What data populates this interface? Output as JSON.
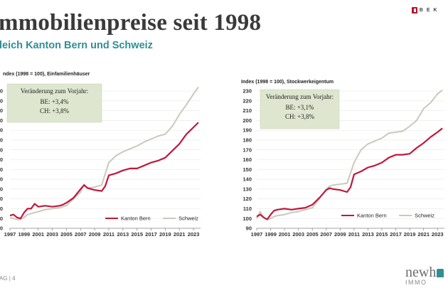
{
  "page": {
    "title": "mmobilienpreise seit 1998",
    "subtitle": "leich Kanton Bern und Schweiz",
    "logo_text": "B E K",
    "footer_left": "AG | 4",
    "brand_name": "newh",
    "brand_sub": "IMMO"
  },
  "colors": {
    "bern": "#c0183c",
    "schweiz": "#c9c9bd",
    "accent": "#2f8f92",
    "box_fill": "#dfe6cf"
  },
  "chart_data": [
    {
      "type": "line",
      "title": "ndex (1998 = 100), Einfamilienhäuser",
      "ylim": [
        90,
        230
      ],
      "yticks": [
        90,
        100,
        110,
        120,
        130,
        140,
        150,
        160,
        170,
        180,
        190,
        200,
        210,
        220,
        230
      ],
      "ytick_labels": [
        "0",
        "0",
        "0",
        "0",
        "0",
        "0",
        "0",
        "0",
        "0",
        "0",
        "0",
        "0",
        "0",
        "0",
        "0"
      ],
      "xlim": [
        1997,
        2024
      ],
      "xticks": [
        "1997",
        "1999",
        "2001",
        "2003",
        "2005",
        "2007",
        "2009",
        "2011",
        "2013",
        "2015",
        "2017",
        "2019",
        "2021",
        "2023"
      ],
      "grid": true,
      "legend_position": "bottom-right",
      "annotation": {
        "heading": "Veränderung zum Vorjahr:",
        "lines": [
          "BE: +3,4%",
          "CH: +3,8%"
        ]
      },
      "series": [
        {
          "name": "Kanton Bern",
          "color": "#c0183c",
          "x": [
            1997,
            1997.5,
            1998,
            1998.5,
            1999,
            1999.5,
            2000,
            2000.5,
            2001,
            2002,
            2003,
            2004,
            2004.5,
            2005,
            2006,
            2007,
            2007.5,
            2008,
            2009,
            2010,
            2010.5,
            2011,
            2012,
            2013,
            2014,
            2015,
            2016,
            2017,
            2018,
            2019,
            2020,
            2021,
            2022,
            2023,
            2023.7
          ],
          "y": [
            103,
            104,
            101,
            100,
            106,
            110,
            110,
            115,
            112,
            113,
            112,
            113,
            114,
            116,
            121,
            130,
            134,
            131,
            129,
            128,
            133,
            144,
            146,
            149,
            151,
            151,
            154,
            157,
            159,
            162,
            169,
            176,
            186,
            193,
            198
          ]
        },
        {
          "name": "Schweiz",
          "color": "#c9c9bd",
          "x": [
            1997,
            1997.5,
            1998,
            1998.5,
            1999,
            1999.5,
            2000,
            2001,
            2002,
            2003,
            2004,
            2005,
            2006,
            2007,
            2007.5,
            2008,
            2009,
            2010,
            2011,
            2012,
            2013,
            2014,
            2015,
            2016,
            2017,
            2018,
            2019,
            2020,
            2021,
            2022,
            2023,
            2023.7
          ],
          "y": [
            101,
            100,
            99,
            99,
            101,
            104,
            105,
            107,
            109,
            110,
            111,
            113,
            120,
            127,
            135,
            131,
            132,
            134,
            157,
            164,
            168,
            171,
            174,
            178,
            181,
            184,
            186,
            194,
            206,
            216,
            227,
            234
          ]
        }
      ]
    },
    {
      "type": "line",
      "title": "Index (1998 = 100), Stockwerkeigentum",
      "ylim": [
        90,
        230
      ],
      "yticks": [
        90,
        100,
        110,
        120,
        130,
        140,
        150,
        160,
        170,
        180,
        190,
        200,
        210,
        220,
        230
      ],
      "ytick_labels": [
        "90",
        "100",
        "110",
        "120",
        "130",
        "140",
        "150",
        "160",
        "170",
        "180",
        "190",
        "200",
        "210",
        "220",
        "230"
      ],
      "xlim": [
        1997,
        2024
      ],
      "xticks": [
        "1997",
        "1999",
        "2001",
        "2003",
        "2005",
        "2007",
        "2009",
        "2011",
        "2013",
        "2015",
        "2017",
        "2019",
        "2021",
        "2023"
      ],
      "grid": true,
      "legend_position": "bottom-right",
      "annotation": {
        "heading": "Veränderung zum Vorjahr:",
        "lines": [
          "BE: +3,1%",
          "CH: +3,8%"
        ]
      },
      "series": [
        {
          "name": "Kanton Bern",
          "color": "#c0183c",
          "x": [
            1997,
            1997.5,
            1998,
            1998.5,
            1999,
            1999.5,
            2000,
            2001,
            2002,
            2003,
            2004,
            2005,
            2006,
            2007,
            2007.5,
            2008,
            2009,
            2010,
            2010.5,
            2011,
            2012,
            2013,
            2014,
            2015,
            2016,
            2017,
            2018,
            2019,
            2020,
            2021,
            2022,
            2023,
            2023.7
          ],
          "y": [
            102,
            104,
            101,
            99,
            104,
            108,
            109,
            110,
            109,
            110,
            111,
            114,
            121,
            129,
            131,
            130,
            129,
            127,
            132,
            145,
            148,
            152,
            154,
            157,
            162,
            165,
            165,
            166,
            172,
            177,
            183,
            188,
            192
          ]
        },
        {
          "name": "Schweiz",
          "color": "#c9c9bd",
          "x": [
            1997,
            1997.5,
            1998,
            1998.5,
            1999,
            1999.5,
            2000,
            2001,
            2002,
            2003,
            2004,
            2005,
            2006,
            2007,
            2007.5,
            2008,
            2009,
            2010,
            2011,
            2012,
            2013,
            2014,
            2015,
            2016,
            2017,
            2018,
            2019,
            2020,
            2021,
            2022,
            2023,
            2023.7
          ],
          "y": [
            100,
            107,
            101,
            99,
            100,
            102,
            103,
            104,
            106,
            107,
            109,
            111,
            120,
            130,
            133,
            134,
            135,
            136,
            157,
            170,
            176,
            179,
            182,
            187,
            188,
            189,
            194,
            200,
            212,
            218,
            227,
            231
          ]
        }
      ]
    }
  ]
}
